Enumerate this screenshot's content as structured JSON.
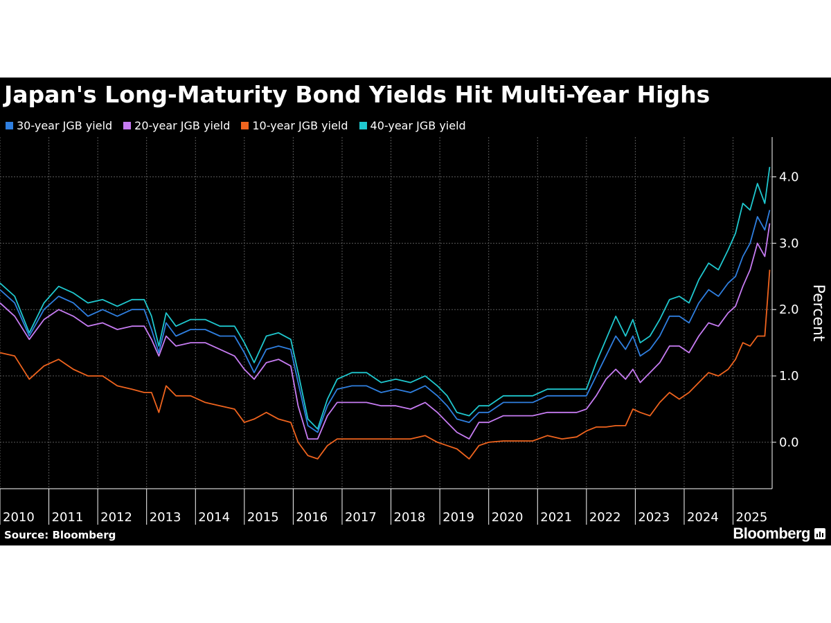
{
  "colors": {
    "background": "#000000",
    "grid": "#5a5a5a",
    "text": "#ffffff",
    "series_30y": "#2f7fe0",
    "series_20y": "#c77cf3",
    "series_10y": "#f0641e",
    "series_40y": "#1fc8cf"
  },
  "footer": {
    "source": "Source: Bloomberg",
    "logo": "Bloomberg"
  },
  "chart_data": {
    "type": "line",
    "title": "Japan's Long-Maturity Bond Yields Hit Multi-Year Highs",
    "xlabel": "",
    "ylabel": "Percent",
    "x_ticks": [
      "2010",
      "2011",
      "2012",
      "2013",
      "2014",
      "2015",
      "2016",
      "2017",
      "2018",
      "2019",
      "2020",
      "2021",
      "2022",
      "2023",
      "2024",
      "2025"
    ],
    "y_ticks": [
      "0.0",
      "1.0",
      "2.0",
      "3.0",
      "4.0"
    ],
    "ylim": [
      -0.7,
      4.6
    ],
    "xlim": [
      2010.0,
      2025.8
    ],
    "grid": true,
    "legend_position": "top-left",
    "series": [
      {
        "name": "30-year JGB yield",
        "color": "#2f7fe0",
        "x": [
          2010.0,
          2010.3,
          2010.6,
          2010.9,
          2011.2,
          2011.5,
          2011.8,
          2012.1,
          2012.4,
          2012.7,
          2012.95,
          2013.1,
          2013.25,
          2013.4,
          2013.6,
          2013.9,
          2014.2,
          2014.5,
          2014.8,
          2015.0,
          2015.2,
          2015.45,
          2015.7,
          2015.95,
          2016.1,
          2016.3,
          2016.5,
          2016.7,
          2016.9,
          2017.2,
          2017.5,
          2017.8,
          2018.1,
          2018.4,
          2018.7,
          2018.95,
          2019.15,
          2019.35,
          2019.6,
          2019.8,
          2020.0,
          2020.3,
          2020.6,
          2020.9,
          2021.2,
          2021.5,
          2021.8,
          2022.0,
          2022.2,
          2022.4,
          2022.6,
          2022.8,
          2022.95,
          2023.1,
          2023.3,
          2023.5,
          2023.7,
          2023.9,
          2024.1,
          2024.3,
          2024.5,
          2024.7,
          2024.9,
          2025.05,
          2025.2,
          2025.35,
          2025.5,
          2025.65,
          2025.75
        ],
        "y": [
          2.3,
          2.1,
          1.6,
          2.0,
          2.2,
          2.1,
          1.9,
          2.0,
          1.9,
          2.0,
          2.0,
          1.7,
          1.35,
          1.8,
          1.6,
          1.7,
          1.7,
          1.6,
          1.6,
          1.35,
          1.05,
          1.4,
          1.45,
          1.4,
          0.9,
          0.25,
          0.15,
          0.55,
          0.8,
          0.85,
          0.85,
          0.75,
          0.8,
          0.75,
          0.85,
          0.7,
          0.55,
          0.35,
          0.3,
          0.45,
          0.45,
          0.6,
          0.6,
          0.6,
          0.7,
          0.7,
          0.7,
          0.7,
          1.0,
          1.3,
          1.6,
          1.4,
          1.6,
          1.3,
          1.4,
          1.6,
          1.9,
          1.9,
          1.8,
          2.1,
          2.3,
          2.2,
          2.4,
          2.5,
          2.8,
          3.0,
          3.4,
          3.2,
          3.5
        ]
      },
      {
        "name": "20-year JGB yield",
        "color": "#c77cf3",
        "x": [
          2010.0,
          2010.3,
          2010.6,
          2010.9,
          2011.2,
          2011.5,
          2011.8,
          2012.1,
          2012.4,
          2012.7,
          2012.95,
          2013.1,
          2013.25,
          2013.4,
          2013.6,
          2013.9,
          2014.2,
          2014.5,
          2014.8,
          2015.0,
          2015.2,
          2015.45,
          2015.7,
          2015.95,
          2016.1,
          2016.3,
          2016.5,
          2016.7,
          2016.9,
          2017.2,
          2017.5,
          2017.8,
          2018.1,
          2018.4,
          2018.7,
          2018.95,
          2019.15,
          2019.35,
          2019.6,
          2019.8,
          2020.0,
          2020.3,
          2020.6,
          2020.9,
          2021.2,
          2021.5,
          2021.8,
          2022.0,
          2022.2,
          2022.4,
          2022.6,
          2022.8,
          2022.95,
          2023.1,
          2023.3,
          2023.5,
          2023.7,
          2023.9,
          2024.1,
          2024.3,
          2024.5,
          2024.7,
          2024.9,
          2025.05,
          2025.2,
          2025.35,
          2025.5,
          2025.65,
          2025.75
        ],
        "y": [
          2.1,
          1.9,
          1.55,
          1.85,
          2.0,
          1.9,
          1.75,
          1.8,
          1.7,
          1.75,
          1.75,
          1.55,
          1.3,
          1.6,
          1.45,
          1.5,
          1.5,
          1.4,
          1.3,
          1.1,
          0.95,
          1.2,
          1.25,
          1.15,
          0.55,
          0.05,
          0.05,
          0.4,
          0.6,
          0.6,
          0.6,
          0.55,
          0.55,
          0.5,
          0.6,
          0.45,
          0.3,
          0.15,
          0.05,
          0.3,
          0.3,
          0.4,
          0.4,
          0.4,
          0.45,
          0.45,
          0.45,
          0.5,
          0.7,
          0.95,
          1.1,
          0.95,
          1.1,
          0.9,
          1.05,
          1.2,
          1.45,
          1.45,
          1.35,
          1.6,
          1.8,
          1.75,
          1.95,
          2.05,
          2.35,
          2.6,
          3.0,
          2.8,
          3.3
        ]
      },
      {
        "name": "10-year JGB yield",
        "color": "#f0641e",
        "x": [
          2010.0,
          2010.3,
          2010.6,
          2010.9,
          2011.2,
          2011.5,
          2011.8,
          2012.1,
          2012.4,
          2012.7,
          2012.95,
          2013.1,
          2013.25,
          2013.4,
          2013.6,
          2013.9,
          2014.2,
          2014.5,
          2014.8,
          2015.0,
          2015.2,
          2015.45,
          2015.7,
          2015.95,
          2016.1,
          2016.3,
          2016.5,
          2016.7,
          2016.9,
          2017.2,
          2017.5,
          2017.8,
          2018.1,
          2018.4,
          2018.7,
          2018.95,
          2019.15,
          2019.35,
          2019.6,
          2019.8,
          2020.0,
          2020.3,
          2020.6,
          2020.9,
          2021.2,
          2021.5,
          2021.8,
          2022.0,
          2022.2,
          2022.4,
          2022.6,
          2022.8,
          2022.95,
          2023.1,
          2023.3,
          2023.5,
          2023.7,
          2023.9,
          2024.1,
          2024.3,
          2024.5,
          2024.7,
          2024.9,
          2025.05,
          2025.2,
          2025.35,
          2025.5,
          2025.65,
          2025.75
        ],
        "y": [
          1.35,
          1.3,
          0.95,
          1.15,
          1.25,
          1.1,
          1.0,
          1.0,
          0.85,
          0.8,
          0.75,
          0.75,
          0.45,
          0.85,
          0.7,
          0.7,
          0.6,
          0.55,
          0.5,
          0.3,
          0.35,
          0.45,
          0.35,
          0.3,
          0.0,
          -0.2,
          -0.25,
          -0.05,
          0.05,
          0.05,
          0.05,
          0.05,
          0.05,
          0.05,
          0.1,
          0.0,
          -0.05,
          -0.1,
          -0.25,
          -0.05,
          0.0,
          0.02,
          0.02,
          0.02,
          0.1,
          0.05,
          0.08,
          0.17,
          0.23,
          0.23,
          0.25,
          0.25,
          0.5,
          0.45,
          0.4,
          0.6,
          0.75,
          0.65,
          0.75,
          0.9,
          1.05,
          1.0,
          1.1,
          1.25,
          1.5,
          1.45,
          1.6,
          1.6,
          2.6
        ]
      },
      {
        "name": "40-year JGB yield",
        "color": "#1fc8cf",
        "x": [
          2010.0,
          2010.3,
          2010.6,
          2010.9,
          2011.2,
          2011.5,
          2011.8,
          2012.1,
          2012.4,
          2012.7,
          2012.95,
          2013.1,
          2013.25,
          2013.4,
          2013.6,
          2013.9,
          2014.2,
          2014.5,
          2014.8,
          2015.0,
          2015.2,
          2015.45,
          2015.7,
          2015.95,
          2016.1,
          2016.3,
          2016.5,
          2016.7,
          2016.9,
          2017.2,
          2017.5,
          2017.8,
          2018.1,
          2018.4,
          2018.7,
          2018.95,
          2019.15,
          2019.35,
          2019.6,
          2019.8,
          2020.0,
          2020.3,
          2020.6,
          2020.9,
          2021.2,
          2021.5,
          2021.8,
          2022.0,
          2022.2,
          2022.4,
          2022.6,
          2022.8,
          2022.95,
          2023.1,
          2023.3,
          2023.5,
          2023.7,
          2023.9,
          2024.1,
          2024.3,
          2024.5,
          2024.7,
          2024.9,
          2025.05,
          2025.2,
          2025.35,
          2025.5,
          2025.65,
          2025.75
        ],
        "y": [
          2.4,
          2.2,
          1.65,
          2.1,
          2.35,
          2.25,
          2.1,
          2.15,
          2.05,
          2.15,
          2.15,
          1.9,
          1.45,
          1.95,
          1.75,
          1.85,
          1.85,
          1.75,
          1.75,
          1.5,
          1.2,
          1.6,
          1.65,
          1.55,
          1.05,
          0.35,
          0.2,
          0.65,
          0.95,
          1.05,
          1.05,
          0.9,
          0.95,
          0.9,
          1.0,
          0.85,
          0.7,
          0.45,
          0.4,
          0.55,
          0.55,
          0.7,
          0.7,
          0.7,
          0.8,
          0.8,
          0.8,
          0.8,
          1.2,
          1.55,
          1.9,
          1.6,
          1.85,
          1.5,
          1.6,
          1.85,
          2.15,
          2.2,
          2.1,
          2.45,
          2.7,
          2.6,
          2.9,
          3.15,
          3.6,
          3.5,
          3.9,
          3.6,
          4.15
        ]
      }
    ]
  }
}
